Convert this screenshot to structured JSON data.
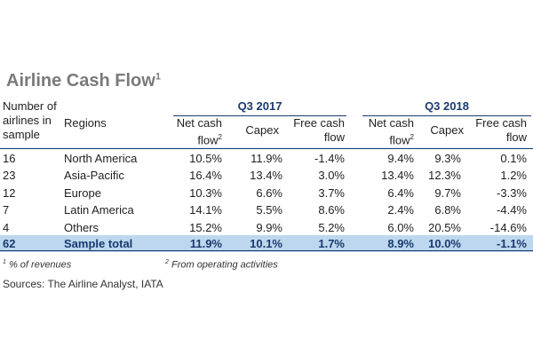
{
  "title": "Airline Cash Flow",
  "title_sup": "1",
  "header": {
    "sample": "Number of airlines in sample",
    "regions": "Regions",
    "q3_2017": "Q3 2017",
    "q3_2018": "Q3 2018",
    "net_cash_flow": "Net cash flow",
    "net_sup": "2",
    "capex": "Capex",
    "free_cash_flow": "Free cash flow"
  },
  "rows": [
    {
      "n": "16",
      "region": "North America",
      "v": [
        "10.5%",
        "11.9%",
        "-1.4%",
        "9.4%",
        "9.3%",
        "0.1%"
      ]
    },
    {
      "n": "23",
      "region": "Asia-Pacific",
      "v": [
        "16.4%",
        "13.4%",
        "3.0%",
        "13.4%",
        "12.3%",
        "1.2%"
      ]
    },
    {
      "n": "12",
      "region": "Europe",
      "v": [
        "10.3%",
        "6.6%",
        "3.7%",
        "6.4%",
        "9.7%",
        "-3.3%"
      ]
    },
    {
      "n": "7",
      "region": "Latin America",
      "v": [
        "14.1%",
        "5.5%",
        "8.6%",
        "2.4%",
        "6.8%",
        "-4.4%"
      ]
    },
    {
      "n": "4",
      "region": "Others",
      "v": [
        "15.2%",
        "9.9%",
        "5.2%",
        "6.0%",
        "20.5%",
        "-14.6%"
      ]
    }
  ],
  "total": {
    "n": "62",
    "region": "Sample total",
    "v": [
      "11.9%",
      "10.1%",
      "1.7%",
      "8.9%",
      "10.0%",
      "-1.1%"
    ]
  },
  "footnotes": {
    "f1_sup": "1",
    "f1": "% of revenues",
    "f2_sup": "2",
    "f2": "From operating activities"
  },
  "sources": "Sources: The Airline Analyst, IATA"
}
